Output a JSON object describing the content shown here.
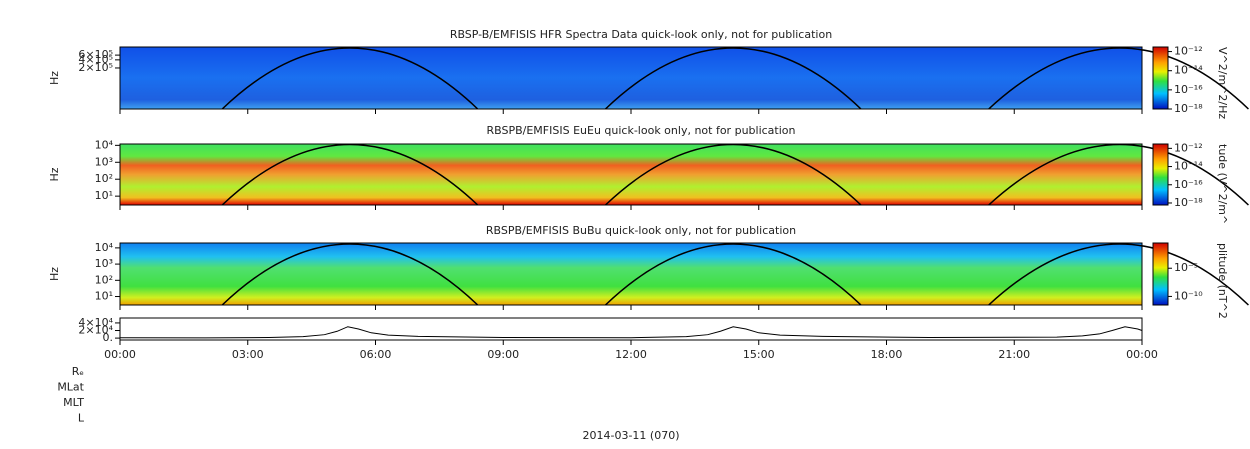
{
  "chart_data": [
    {
      "type": "spectrogram",
      "title": "RBSP-B/EMFISIS  HFR Spectra Data quick-look only, not for publication",
      "ylabel": "Hz",
      "yscale": "log",
      "ylim": [
        6000,
        1200000
      ],
      "yticks": [
        {
          "value": 200000,
          "label": "2×10⁵"
        },
        {
          "value": 400000,
          "label": "4×10⁵"
        },
        {
          "value": 600000,
          "label": "6×10⁵"
        }
      ],
      "zlabel": "V^2/m^2/Hz",
      "zscale": "log",
      "zlim": [
        1e-18,
        3e-12
      ],
      "zticks": [
        {
          "value": 1e-12,
          "label": "10⁻¹²"
        },
        {
          "value": 1e-14,
          "label": "10⁻¹⁴"
        },
        {
          "value": 1e-16,
          "label": "10⁻¹⁶"
        },
        {
          "value": 1e-18,
          "label": "10⁻¹⁸"
        }
      ]
    },
    {
      "type": "spectrogram",
      "title": "RBSPB/EMFISIS  EuEu quick-look only, not for publication",
      "ylabel": "Hz",
      "yscale": "log",
      "ylim": [
        3,
        12000
      ],
      "yticks": [
        {
          "value": 10,
          "label": "10¹"
        },
        {
          "value": 100,
          "label": "10²"
        },
        {
          "value": 1000,
          "label": "10³"
        },
        {
          "value": 10000,
          "label": "10⁴"
        }
      ],
      "zlabel": "tude (V^2/m^",
      "zscale": "log",
      "zlim": [
        6e-19,
        3e-12
      ],
      "zticks": [
        {
          "value": 1e-12,
          "label": "10⁻¹²"
        },
        {
          "value": 1e-14,
          "label": "10⁻¹⁴"
        },
        {
          "value": 1e-16,
          "label": "10⁻¹⁶"
        },
        {
          "value": 1e-18,
          "label": "10⁻¹⁸"
        }
      ]
    },
    {
      "type": "spectrogram",
      "title": "RBSPB/EMFISIS  BuBu quick-look only, not for publication",
      "ylabel": "Hz",
      "yscale": "log",
      "ylim": [
        3,
        20000
      ],
      "yticks": [
        {
          "value": 10,
          "label": "10¹"
        },
        {
          "value": 100,
          "label": "10²"
        },
        {
          "value": 1000,
          "label": "10³"
        },
        {
          "value": 10000,
          "label": "10⁴"
        }
      ],
      "zlabel": "plitude (nT^2",
      "zscale": "log",
      "zlim": [
        3e-12,
        0.3
      ],
      "zticks": [
        {
          "value": 1e-05,
          "label": "10⁻⁵"
        },
        {
          "value": 1e-10,
          "label": "10⁻¹⁰"
        }
      ]
    },
    {
      "type": "line",
      "color": "#000000",
      "ylim": [
        -5000,
        53000
      ],
      "yticks": [
        {
          "value": 0,
          "label": "0."
        },
        {
          "value": 20000,
          "label": "2×10⁴"
        },
        {
          "value": 40000,
          "label": "4×10⁴"
        }
      ],
      "xlim": [
        0,
        24
      ],
      "xticks": [
        {
          "value": 0,
          "label": "00:00"
        },
        {
          "value": 3,
          "label": "03:00"
        },
        {
          "value": 6,
          "label": "06:00"
        },
        {
          "value": 9,
          "label": "09:00"
        },
        {
          "value": 12,
          "label": "12:00"
        },
        {
          "value": 15,
          "label": "15:00"
        },
        {
          "value": 18,
          "label": "18:00"
        },
        {
          "value": 21,
          "label": "21:00"
        },
        {
          "value": 24,
          "label": "00:00"
        }
      ],
      "x": [
        0,
        2,
        3.5,
        4.3,
        4.8,
        5.1,
        5.35,
        5.6,
        5.9,
        6.3,
        7,
        9,
        12,
        13.3,
        13.8,
        14.1,
        14.4,
        14.7,
        15.0,
        15.5,
        16.5,
        19,
        22,
        22.6,
        23,
        23.3,
        23.6,
        23.9,
        24
      ],
      "values": [
        1000,
        500,
        1500,
        4000,
        9000,
        18000,
        30000,
        24000,
        14000,
        8000,
        4500,
        1500,
        1000,
        4000,
        9000,
        18000,
        30000,
        24000,
        14000,
        8000,
        4500,
        1500,
        2500,
        6000,
        11000,
        20000,
        30000,
        24000,
        20000
      ],
      "row_labels": [
        "Rₑ",
        "MLat",
        "MLT",
        "L"
      ],
      "xlabel": "2014-03-11 (070)"
    }
  ]
}
